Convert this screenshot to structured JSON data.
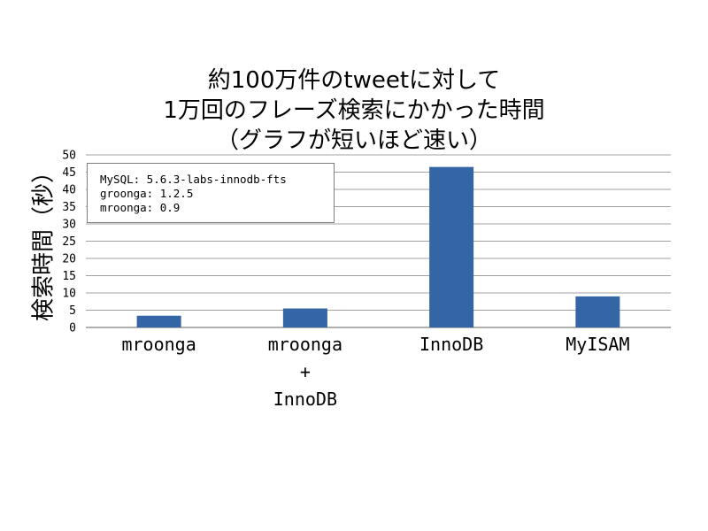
{
  "chart_data": {
    "type": "bar",
    "title_lines": [
      "約100万件のtweetに対して",
      "1万回のフレーズ検索にかかった時間",
      "（グラフが短いほど速い）"
    ],
    "ylabel": "検索時間（秒）",
    "xlabel": "",
    "categories": [
      [
        "mroonga"
      ],
      [
        "mroonga",
        "+",
        "InnoDB"
      ],
      [
        "InnoDB"
      ],
      [
        "MyISAM"
      ]
    ],
    "values": [
      3.4,
      5.5,
      46.5,
      9.0
    ],
    "ylim": [
      0,
      50
    ],
    "yticks": [
      0,
      5,
      10,
      15,
      20,
      25,
      30,
      35,
      40,
      45,
      50
    ],
    "grid": true,
    "bar_color": "#3465a4",
    "annotation_lines": [
      "MySQL: 5.6.3-labs-innodb-fts",
      "groonga: 1.2.5",
      "mroonga: 0.9"
    ],
    "annotation_placement": "top-left"
  }
}
